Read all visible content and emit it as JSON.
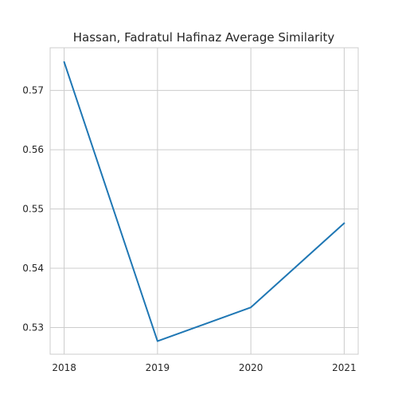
{
  "chart_data": {
    "type": "line",
    "title": "Hassan, Fadratul Hafinaz Average Similarity",
    "xlabel": "",
    "ylabel": "",
    "x": [
      "2018",
      "2019",
      "2020",
      "2021"
    ],
    "series": [
      {
        "values": [
          0.5748,
          0.5277,
          0.5334,
          0.5476
        ],
        "color": "#1f77b4"
      }
    ],
    "xlim": [
      2017.85,
      2021.15
    ],
    "ylim": [
      0.5255,
      0.5772
    ],
    "yticks": [
      0.53,
      0.54,
      0.55,
      0.56,
      0.57
    ],
    "ytick_labels": [
      "0.53",
      "0.54",
      "0.55",
      "0.56",
      "0.57"
    ],
    "grid": true,
    "legend": "none"
  }
}
